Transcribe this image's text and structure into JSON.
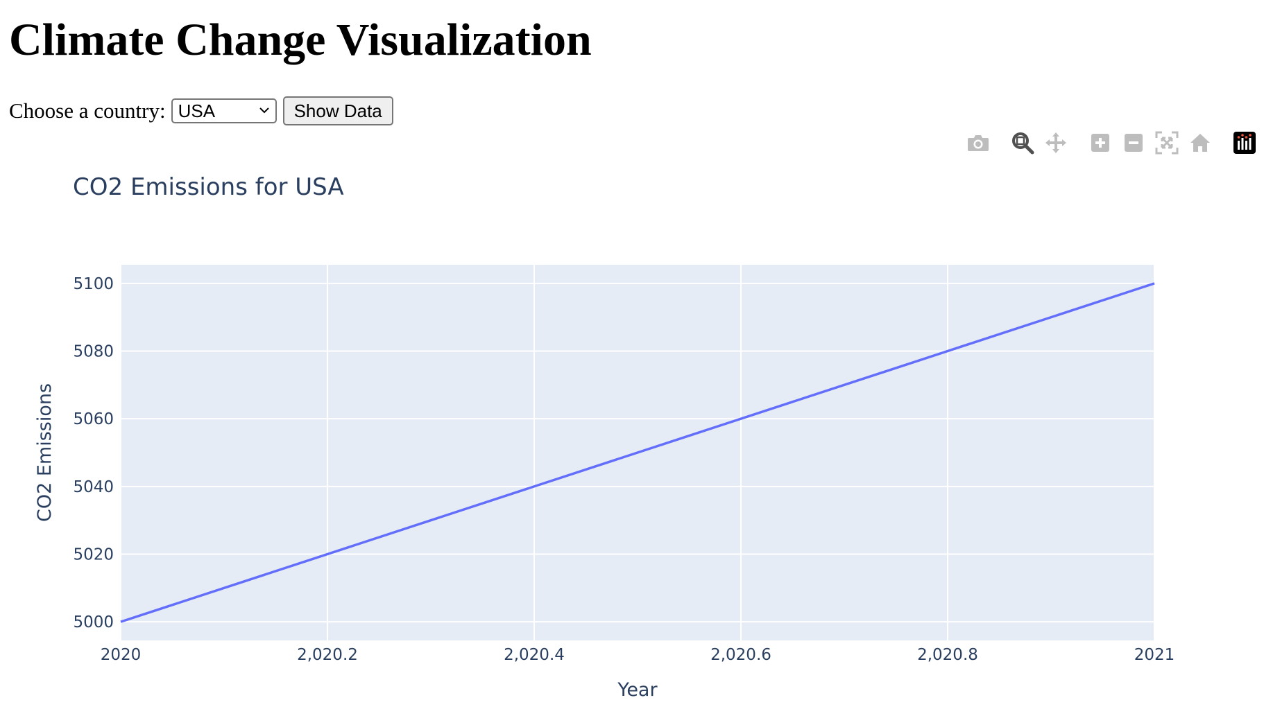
{
  "page": {
    "title": "Climate Change Visualization"
  },
  "controls": {
    "country_label": "Choose a country:",
    "country_selected": "USA",
    "show_button_label": "Show Data"
  },
  "modebar": {
    "buttons": [
      {
        "name": "camera-icon",
        "label": "Download plot as a png"
      },
      {
        "name": "zoom-icon",
        "label": "Zoom"
      },
      {
        "name": "pan-icon",
        "label": "Pan"
      },
      {
        "name": "zoom-in-icon",
        "label": "Zoom in"
      },
      {
        "name": "zoom-out-icon",
        "label": "Zoom out"
      },
      {
        "name": "autoscale-icon",
        "label": "Autoscale"
      },
      {
        "name": "home-icon",
        "label": "Reset axes"
      },
      {
        "name": "plotly-logo-icon",
        "label": "Produced with Plotly"
      }
    ],
    "active": "zoom-icon"
  },
  "chart_data": {
    "type": "line",
    "title": "CO2 Emissions for USA",
    "xlabel": "Year",
    "ylabel": "CO2 Emissions",
    "x": [
      2020,
      2021
    ],
    "series": [
      {
        "values": [
          5000,
          5100
        ],
        "color": "#636efa"
      }
    ],
    "xlim": [
      2020,
      2021
    ],
    "ylim": [
      4994.5,
      5105.5
    ],
    "x_ticks": [
      2020,
      2020.2,
      2020.4,
      2020.6,
      2020.8,
      2021
    ],
    "x_tick_labels": [
      "2020",
      "2,020.2",
      "2,020.4",
      "2,020.6",
      "2,020.8",
      "2021"
    ],
    "y_ticks": [
      5000,
      5020,
      5040,
      5060,
      5080,
      5100
    ],
    "y_tick_labels": [
      "5000",
      "5020",
      "5040",
      "5060",
      "5080",
      "5100"
    ],
    "grid": true,
    "plot_background": "#e5ecf6",
    "grid_color": "#ffffff",
    "text_color": "#2a3f5f"
  }
}
